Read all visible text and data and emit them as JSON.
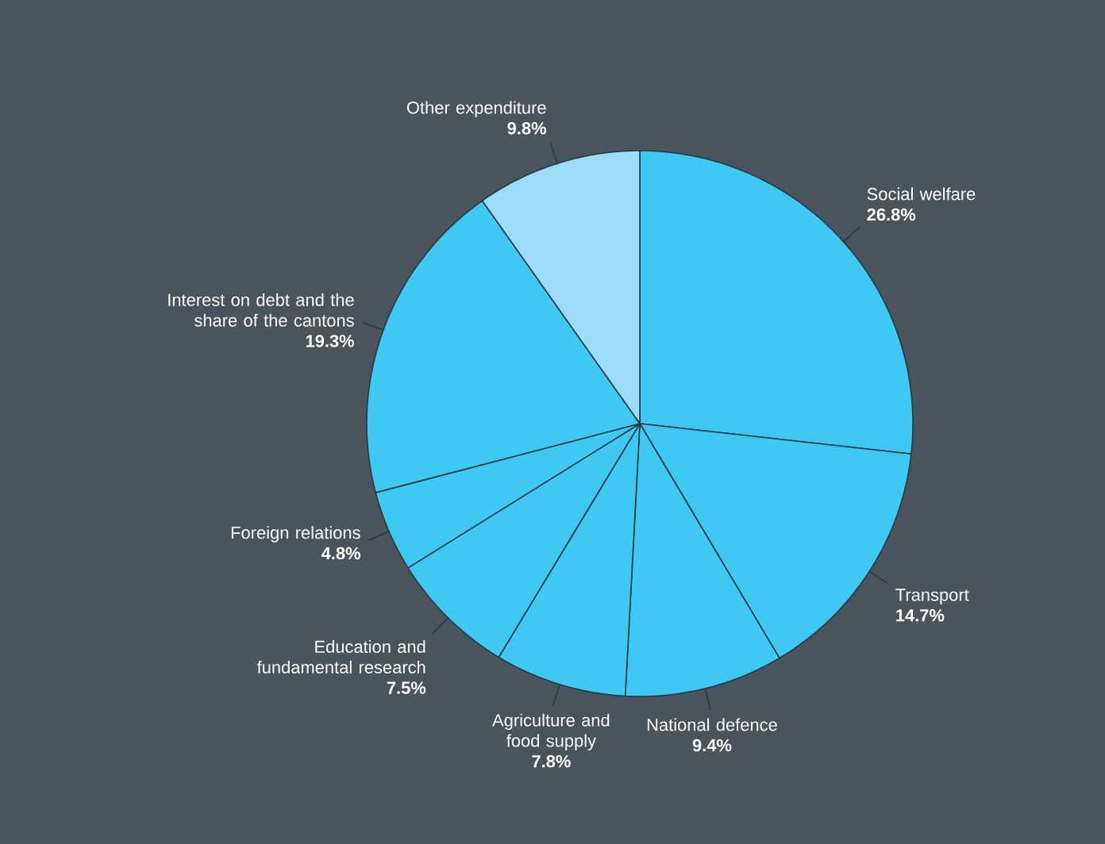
{
  "chart_data": {
    "type": "pie",
    "categories": [
      "Social welfare",
      "Transport",
      "National defence",
      "Agriculture and food supply",
      "Education and fundamental research",
      "Foreign relations",
      "Interest on debt and the share of the cantons",
      "Other expenditure"
    ],
    "values": [
      26.8,
      14.7,
      9.4,
      7.8,
      7.5,
      4.8,
      19.3,
      9.8
    ],
    "value_labels": [
      "26.8%",
      "14.7%",
      "9.4%",
      "7.8%",
      "7.5%",
      "4.8%",
      "19.3%",
      "9.8%"
    ],
    "colors": [
      "#3fc8f2",
      "#3fc8f2",
      "#3fc8f2",
      "#3fc8f2",
      "#3fc8f2",
      "#3fc8f2",
      "#3fc8f2",
      "#9bdcf8"
    ]
  }
}
